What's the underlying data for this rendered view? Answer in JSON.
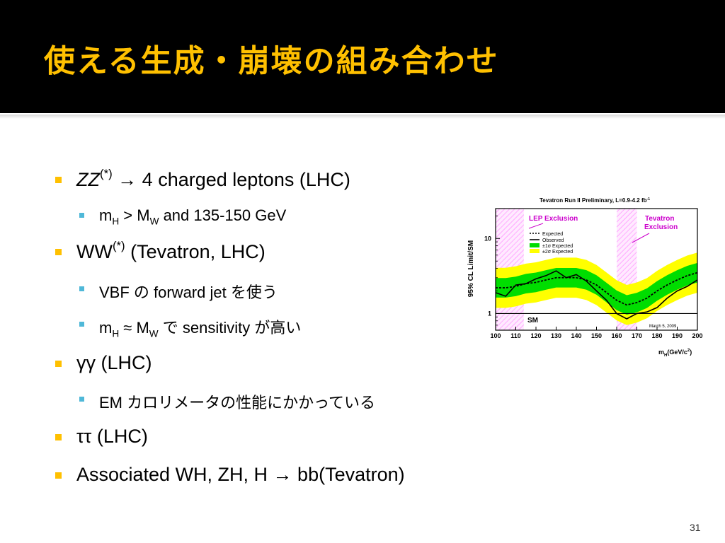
{
  "slide": {
    "title": "使える生成・崩壊の組み合わせ",
    "page_number": "31"
  },
  "bullets": {
    "zz": {
      "main": "ZZ",
      "sup": "(*)",
      "rest": " → 4 charged leptons (LHC)"
    },
    "zz_sub1": {
      "a": "m",
      "a_sub": "H",
      "b": " > M",
      "b_sub": "W",
      "c": " and 135-150 GeV"
    },
    "ww": {
      "main": "WW",
      "sup": "(*)",
      "rest": " (Tevatron, LHC)"
    },
    "ww_sub1": "VBF の forward jet を使う",
    "ww_sub2": {
      "a": "m",
      "a_sub": "H",
      "b": " ≈ M",
      "b_sub": "W",
      "c": " で sensitivity が高い"
    },
    "gg": "γγ (LHC)",
    "gg_sub1": "EM カロリメータの性能にかかっている",
    "tt": "ττ (LHC)",
    "assoc": "Associated WH, ZH, H → bb(Tevatron)"
  },
  "chart_data": {
    "type": "line",
    "title": "Tevatron Run II Preliminary, L=0.9-4.2 fb",
    "title_sup": "-1",
    "xlabel": "m",
    "xlabel_sub": "H",
    "xlabel_rest": "(GeV/c",
    "xlabel_sup": "2",
    "xlabel_end": ")",
    "ylabel": "95% CL Limit/SM",
    "xlim": [
      100,
      200
    ],
    "ylim_log": [
      0.6,
      25
    ],
    "yscale": "log",
    "x_ticks": [
      "100",
      "110",
      "120",
      "130",
      "140",
      "150",
      "160",
      "170",
      "180",
      "190",
      "200"
    ],
    "y_ticks": [
      "1",
      "10"
    ],
    "x": [
      100,
      105,
      110,
      115,
      120,
      125,
      130,
      135,
      140,
      145,
      150,
      155,
      160,
      165,
      170,
      175,
      180,
      185,
      190,
      195,
      200
    ],
    "series": [
      {
        "name": "Expected",
        "values": [
          2.2,
          2.2,
          2.3,
          2.5,
          2.6,
          2.8,
          3.0,
          3.0,
          3.0,
          2.8,
          2.4,
          1.9,
          1.5,
          1.3,
          1.4,
          1.6,
          2.0,
          2.4,
          2.8,
          3.2,
          3.5
        ]
      },
      {
        "name": "Observed",
        "values": [
          1.9,
          1.7,
          2.4,
          2.5,
          2.9,
          3.2,
          3.7,
          3.0,
          3.3,
          2.7,
          2.0,
          1.5,
          1.0,
          0.85,
          1.0,
          1.05,
          1.2,
          1.6,
          2.0,
          2.3,
          2.8
        ]
      }
    ],
    "band_1sigma": {
      "name": "±1σ Expected",
      "scale": 1.35
    },
    "band_2sigma": {
      "name": "±2σ Expected",
      "scale": 1.85
    },
    "exclusions": [
      {
        "label": "LEP Exclusion",
        "range": [
          100,
          114
        ]
      },
      {
        "label_line1": "Tevatron",
        "label_line2": "Exclusion",
        "range": [
          160,
          170
        ]
      }
    ],
    "sm_label": "SM",
    "date_annotation": "March 5, 2009",
    "legend_position": "top-left",
    "colors": {
      "band1": "#00dd00",
      "band2": "#ffff00",
      "excl": "#ff66ff",
      "excl_text": "#cc00cc",
      "line": "#000000"
    }
  }
}
